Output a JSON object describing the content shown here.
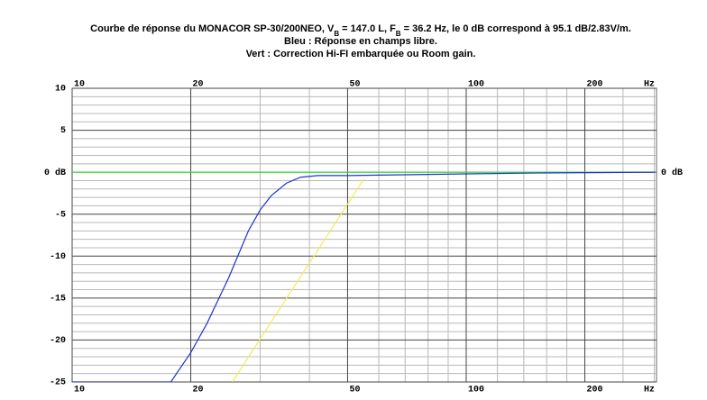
{
  "chart_data": {
    "type": "line",
    "title_parts": [
      {
        "text": "Courbe de réponse du MONACOR SP-30/200NEO, V"
      },
      {
        "text": "B",
        "sub": true
      },
      {
        "text": " = 147.0 L, F"
      },
      {
        "text": "B",
        "sub": true
      },
      {
        "text": " = 36.2 Hz, le 0 dB correspond à 95.1 dB/2.83V/m."
      }
    ],
    "subtitle": [
      "Bleu : Réponse en champs libre.",
      "Vert : Correction Hi-FI embarquée ou Room gain."
    ],
    "x_unit": "Hz",
    "xscale": "log",
    "xlim": [
      10,
      304
    ],
    "ylim": [
      -25,
      10
    ],
    "xticks": [
      10,
      20,
      50,
      100,
      200
    ],
    "xminor": [
      30,
      40,
      60,
      70,
      80,
      90,
      120,
      140,
      160,
      180,
      250,
      300
    ],
    "yticks": [
      10,
      5,
      {
        "value": 0,
        "label": "0 dB"
      },
      -5,
      -10,
      -15,
      -20,
      -25
    ],
    "yminor": [
      9,
      8,
      7,
      6,
      4,
      3,
      2,
      1,
      -1,
      -2,
      -3,
      -4,
      -6,
      -7,
      -8,
      -9,
      -11,
      -12,
      -13,
      -14,
      -16,
      -17,
      -18,
      -19,
      -21,
      -22,
      -23,
      -24
    ],
    "grid": true,
    "series": [
      {
        "color": "#33dd33",
        "x": [
          10,
          300
        ],
        "values": [
          0,
          0
        ]
      },
      {
        "color": "#eeee55",
        "x": [
          25.5,
          55
        ],
        "values": [
          -25,
          -0.8
        ]
      },
      {
        "color": "#2233cc",
        "x": [
          10,
          17.8,
          20,
          22,
          25,
          28,
          30,
          32,
          35,
          38,
          42,
          50,
          100,
          150,
          300
        ],
        "values": [
          -25,
          -25,
          -21.5,
          -18,
          -12.5,
          -7,
          -4.5,
          -2.8,
          -1.3,
          -0.6,
          -0.4,
          -0.4,
          -0.2,
          -0.1,
          0
        ]
      }
    ]
  }
}
